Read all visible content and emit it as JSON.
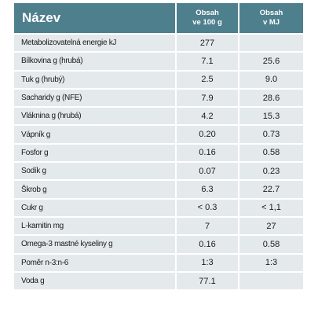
{
  "table": {
    "title": "Název",
    "col1_line1": "Obsah",
    "col1_line2": "ve 100 g",
    "col2_line1": "Obsah",
    "col2_line2": "v MJ",
    "rows": [
      {
        "name": "Metabolizovatelná energie kJ",
        "per100": "277",
        "perMJ": ""
      },
      {
        "name": "Bílkovina g (hrubá)",
        "per100": "7.1",
        "perMJ": "25.6"
      },
      {
        "name": "Tuk g (hrubý)",
        "per100": "2.5",
        "perMJ": "9.0"
      },
      {
        "name": "Sacharidy g (NFE)",
        "per100": "7.9",
        "perMJ": "28.6"
      },
      {
        "name": "Vláknina g (hrubá)",
        "per100": "4.2",
        "perMJ": "15.3"
      },
      {
        "name": "Vápník g",
        "per100": "0.20",
        "perMJ": "0.73"
      },
      {
        "name": "Fosfor g",
        "per100": "0.16",
        "perMJ": "0.58"
      },
      {
        "name": "Sodík g",
        "per100": "0.07",
        "perMJ": "0.23"
      },
      {
        "name": "Škrob g",
        "per100": "6.3",
        "perMJ": "22.7"
      },
      {
        "name": "Cukr g",
        "per100": "< 0.3",
        "perMJ": "< 1,1"
      },
      {
        "name": "L-karnitin mg",
        "per100": "7",
        "perMJ": "27"
      },
      {
        "name": "Omega-3 mastné kyseliny g",
        "per100": "0.16",
        "perMJ": "0.58"
      },
      {
        "name": "Poměr n-3:n-6",
        "per100": "1:3",
        "perMJ": "1:3"
      },
      {
        "name": "Voda g",
        "per100": "77.1",
        "perMJ": ""
      }
    ]
  }
}
